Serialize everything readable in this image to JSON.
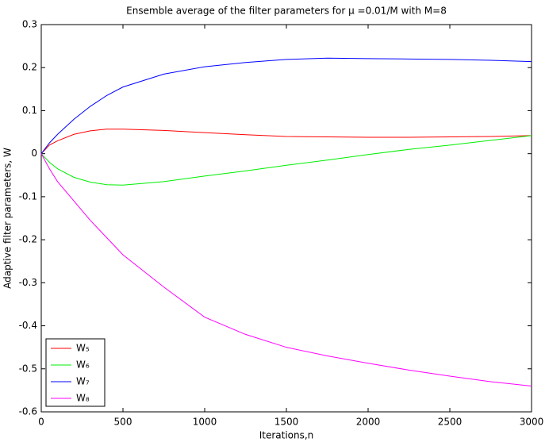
{
  "chart_data": {
    "type": "line",
    "title": "Ensemble average of the filter parameters for μ =0.01/M with M=8",
    "x_label": "Iterations,n",
    "y_label": "Adaptive filter parameters, W",
    "x": [
      0,
      50,
      100,
      200,
      300,
      400,
      500,
      750,
      1000,
      1250,
      1500,
      1750,
      2000,
      2250,
      2500,
      2750,
      3000
    ],
    "series": [
      {
        "name": "W₅",
        "color": "#ff0000",
        "values": [
          0,
          0.02,
          0.03,
          0.045,
          0.053,
          0.057,
          0.057,
          0.054,
          0.049,
          0.044,
          0.04,
          0.039,
          0.038,
          0.038,
          0.039,
          0.04,
          0.042
        ]
      },
      {
        "name": "W₆",
        "color": "#00ee00",
        "values": [
          0,
          -0.02,
          -0.035,
          -0.055,
          -0.066,
          -0.072,
          -0.073,
          -0.065,
          -0.052,
          -0.04,
          -0.027,
          -0.015,
          -0.002,
          0.01,
          0.02,
          0.031,
          0.042
        ]
      },
      {
        "name": "W₇",
        "color": "#0000ff",
        "values": [
          0,
          0.025,
          0.045,
          0.08,
          0.11,
          0.135,
          0.155,
          0.185,
          0.202,
          0.212,
          0.219,
          0.222,
          0.221,
          0.22,
          0.219,
          0.217,
          0.214
        ]
      },
      {
        "name": "W₈",
        "color": "#ff00ff",
        "values": [
          0,
          -0.035,
          -0.065,
          -0.11,
          -0.155,
          -0.195,
          -0.235,
          -0.31,
          -0.38,
          -0.42,
          -0.45,
          -0.47,
          -0.487,
          -0.503,
          -0.517,
          -0.53,
          -0.54
        ]
      }
    ],
    "xlim": [
      0,
      3000
    ],
    "xticks": [
      0,
      500,
      1000,
      1500,
      2000,
      2500,
      3000
    ],
    "ylim": [
      -0.6,
      0.3
    ],
    "yticks": [
      -0.6,
      -0.5,
      -0.4,
      -0.3,
      -0.2,
      -0.1,
      0,
      0.1,
      0.2,
      0.3
    ],
    "legend": "lower-left",
    "grid": false
  }
}
